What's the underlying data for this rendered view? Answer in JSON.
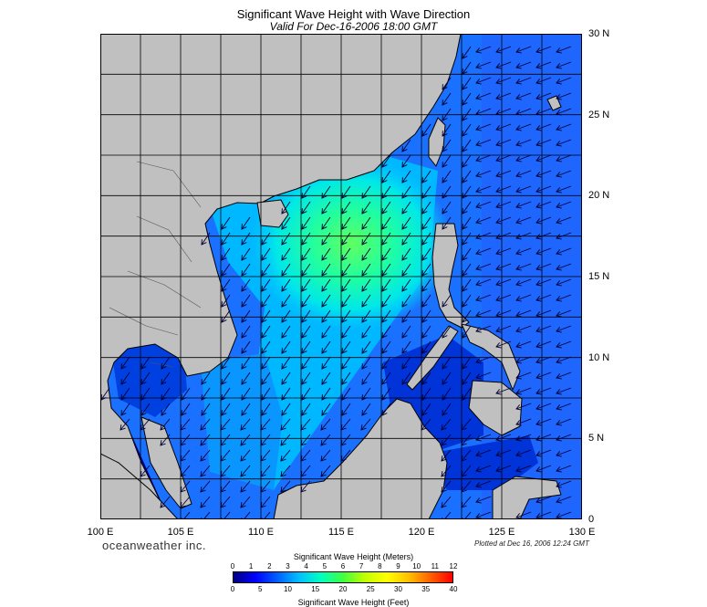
{
  "title": "Significant Wave Height with Wave Direction",
  "subtitle": "Valid For Dec-16-2006 18:00 GMT",
  "x_axis": {
    "ticks": [
      "100 E",
      "105 E",
      "110 E",
      "115 E",
      "120 E",
      "125 E",
      "130 E"
    ]
  },
  "y_axis": {
    "ticks": [
      "30 N",
      "25 N",
      "20 N",
      "15 N",
      "10 N",
      "5 N",
      "0"
    ]
  },
  "extent": {
    "lon": [
      100,
      130
    ],
    "lat": [
      0,
      30
    ]
  },
  "brand": "oceanweather inc.",
  "plotted": "Plotted at Dec 16, 2006 12:24 GMT",
  "colors": {
    "land": "#c0c0c0",
    "coast": "#000000",
    "grid": "#000000",
    "arrow": "#000033"
  },
  "colorbar": {
    "title_meters": "Significant Wave Height (Meters)",
    "title_feet": "Significant Wave Height (Feet)",
    "meters_ticks": [
      "0",
      "1",
      "2",
      "3",
      "4",
      "5",
      "6",
      "7",
      "8",
      "9",
      "10",
      "11",
      "12"
    ],
    "feet_ticks": [
      "0",
      "5",
      "10",
      "15",
      "20",
      "25",
      "30",
      "35",
      "40"
    ],
    "range_m": [
      0,
      12
    ],
    "stops": [
      "#000080",
      "#0000ff",
      "#0060ff",
      "#00c0ff",
      "#00ffc0",
      "#40ff40",
      "#c0ff00",
      "#ffff00",
      "#ffc000",
      "#ff6000",
      "#ff0000"
    ]
  }
}
